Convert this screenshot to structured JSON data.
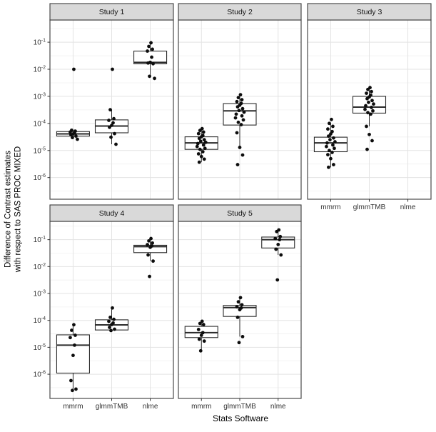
{
  "chart_data": {
    "type": "boxplot",
    "xlabel": "Stats Software",
    "ylabel": "Difference of Contrast estimates\nwith respect to SAS PROC MIXED",
    "x_categories": [
      "mmrm",
      "glmmTMB",
      "nlme"
    ],
    "y_scale": "log10",
    "y_ticks_exponents": [
      -1,
      -2,
      -3,
      -4,
      -5,
      -6
    ],
    "y_range_log10": [
      -0.2,
      -6.8
    ],
    "grid": "major-and-minor",
    "legend_position": "none",
    "style": {
      "strip_fill": "#d9d9d9",
      "strip_border": "#3c3c3c",
      "panel_fill": "#ffffff",
      "panel_border": "#4a4a4a",
      "grid_major": "#e3e3e3",
      "grid_minor": "#f0f0f0",
      "box_stroke": "#2a2a2a",
      "point_color": "#0d0d0d",
      "tick_text": "#333333"
    },
    "facets": [
      {
        "label": "Study 1",
        "row": 0,
        "col": 0,
        "x_axis": false,
        "groups": [
          {
            "software": "mmrm",
            "box": {
              "q1": 3.4e-05,
              "median": 4.1e-05,
              "q3": 5e-05,
              "whisker_low": 2.6e-05,
              "whisker_high": 5.6e-05
            },
            "points": [
              0.01,
              5.6e-05,
              5.2e-05,
              4.8e-05,
              4.4e-05,
              4.1e-05,
              3.8e-05,
              3.4e-05,
              3e-05,
              2.6e-05
            ]
          },
          {
            "software": "glmmTMB",
            "box": {
              "q1": 4.5e-05,
              "median": 8e-05,
              "q3": 0.000135,
              "whisker_low": 1.7e-05,
              "whisker_high": 0.00032
            },
            "points": [
              0.01,
              0.00032,
              0.00015,
              0.00013,
              0.000105,
              8.5e-05,
              7.2e-05,
              4.2e-05,
              3.1e-05,
              1.7e-05
            ]
          },
          {
            "software": "nlme",
            "box": {
              "q1": 0.016,
              "median": 0.018,
              "q3": 0.047,
              "whisker_low": 0.0055,
              "whisker_high": 0.095
            },
            "points": [
              0.095,
              0.07,
              0.055,
              0.047,
              0.028,
              0.018,
              0.017,
              0.016,
              0.0055,
              0.0046
            ]
          }
        ]
      },
      {
        "label": "Study 2",
        "row": 0,
        "col": 1,
        "x_axis": false,
        "groups": [
          {
            "software": "mmrm",
            "box": {
              "q1": 1.1e-05,
              "median": 1.9e-05,
              "q3": 3.2e-05,
              "whisker_low": 3.7e-06,
              "whisker_high": 6.4e-05
            },
            "points": [
              6.4e-05,
              5.5e-05,
              4.8e-05,
              4.2e-05,
              3.6e-05,
              3.2e-05,
              2.8e-05,
              2.5e-05,
              2.2e-05,
              2e-05,
              1.8e-05,
              1.6e-05,
              1.4e-05,
              1.2e-05,
              1.1e-05,
              9e-06,
              7.5e-06,
              6e-06,
              4.8e-06,
              3.7e-06
            ]
          },
          {
            "software": "glmmTMB",
            "box": {
              "q1": 8.7e-05,
              "median": 0.00029,
              "q3": 0.00054,
              "whisker_low": 1.3e-05,
              "whisker_high": 0.00115
            },
            "points": [
              0.00115,
              0.0009,
              0.00075,
              0.00064,
              0.00055,
              0.00047,
              0.00041,
              0.00035,
              0.0003,
              0.00026,
              0.00022,
              0.00019,
              0.00016,
              0.000135,
              0.00011,
              9e-05,
              4.5e-05,
              1.3e-05,
              6.8e-06,
              3e-06
            ]
          }
        ]
      },
      {
        "label": "Study 3",
        "row": 0,
        "col": 2,
        "x_axis": true,
        "groups": [
          {
            "software": "mmrm",
            "box": {
              "q1": 9e-06,
              "median": 1.9e-05,
              "q3": 3.1e-05,
              "whisker_low": 2.4e-06,
              "whisker_high": 0.0001
            },
            "points": [
              0.00014,
              0.0001,
              7.8e-05,
              6.2e-05,
              5e-05,
              4.1e-05,
              3.4e-05,
              2.9e-05,
              2.5e-05,
              2.1e-05,
              1.9e-05,
              1.6e-05,
              1.4e-05,
              1.2e-05,
              1e-05,
              8.5e-06,
              7e-06,
              5e-06,
              3e-06,
              2.4e-06
            ]
          },
          {
            "software": "glmmTMB",
            "box": {
              "q1": 0.00024,
              "median": 0.0004,
              "q3": 0.001,
              "whisker_low": 7.8e-05,
              "whisker_high": 0.0021
            },
            "points": [
              0.0021,
              0.0018,
              0.0015,
              0.0013,
              0.0011,
              0.00095,
              0.00082,
              0.0007,
              0.0006,
              0.00052,
              0.00045,
              0.00039,
              0.00033,
              0.00029,
              0.00025,
              0.00022,
              7.8e-05,
              3.9e-05,
              2.3e-05,
              1.1e-05
            ]
          }
        ]
      },
      {
        "label": "Study 4",
        "row": 1,
        "col": 0,
        "x_axis": true,
        "groups": [
          {
            "software": "mmrm",
            "box": {
              "q1": 1.1e-06,
              "median": 1.2e-05,
              "q3": 2.9e-05,
              "whisker_low": 2.5e-07,
              "whisker_high": 6.9e-05
            },
            "points": [
              6.9e-05,
              4.3e-05,
              2.8e-05,
              2.3e-05,
              1.2e-05,
              5e-06,
              5.8e-07,
              2.8e-07,
              2.5e-07
            ]
          },
          {
            "software": "glmmTMB",
            "box": {
              "q1": 4.4e-05,
              "median": 6.8e-05,
              "q3": 0.000105,
              "whisker_low": 4.2e-05,
              "whisker_high": 0.00029
            },
            "points": [
              0.00029,
              0.00013,
              0.00011,
              9.2e-05,
              8e-05,
              7e-05,
              5.5e-05,
              4.7e-05,
              4.2e-05
            ]
          },
          {
            "software": "nlme",
            "box": {
              "q1": 0.033,
              "median": 0.055,
              "q3": 0.062,
              "whisker_low": 0.016,
              "whisker_high": 0.11
            },
            "points": [
              0.11,
              0.09,
              0.075,
              0.065,
              0.058,
              0.052,
              0.027,
              0.016,
              0.0043
            ]
          }
        ]
      },
      {
        "label": "Study 5",
        "row": 1,
        "col": 1,
        "x_axis": true,
        "groups": [
          {
            "software": "mmrm",
            "box": {
              "q1": 2.3e-05,
              "median": 3.5e-05,
              "q3": 6e-05,
              "whisker_low": 7.4e-06,
              "whisker_high": 9.3e-05
            },
            "points": [
              9.3e-05,
              7.7e-05,
              7e-05,
              4.6e-05,
              3.5e-05,
              2.8e-05,
              2e-05,
              1.7e-05,
              7.4e-06
            ]
          },
          {
            "software": "glmmTMB",
            "box": {
              "q1": 0.00014,
              "median": 0.0003,
              "q3": 0.00036,
              "whisker_low": 2.5e-05,
              "whisker_high": 0.0007
            },
            "points": [
              0.0007,
              0.00049,
              0.00038,
              0.00032,
              0.00029,
              0.00025,
              0.00013,
              2.5e-05,
              1.5e-05
            ]
          },
          {
            "software": "nlme",
            "box": {
              "q1": 0.049,
              "median": 0.1,
              "q3": 0.125,
              "whisker_low": 0.027,
              "whisker_high": 0.23
            },
            "points": [
              0.23,
              0.2,
              0.13,
              0.11,
              0.1,
              0.066,
              0.044,
              0.027,
              0.0032
            ]
          }
        ]
      }
    ]
  }
}
